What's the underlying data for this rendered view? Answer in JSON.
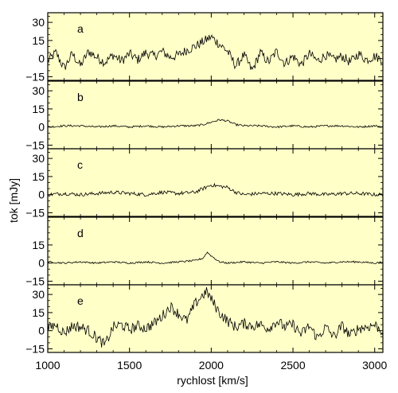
{
  "chart_data": {
    "type": "line",
    "xlabel": "rychlost [km/s]",
    "ylabel": "tok [mJy]",
    "xlim": [
      1000,
      3050
    ],
    "x_ticks": [
      1000,
      1500,
      2000,
      2500,
      3000
    ],
    "x_tick_labels": [
      "1000",
      "1500",
      "2000",
      "2500",
      "3000"
    ],
    "background_color": "#ffffc8",
    "line_color": "#000000",
    "grid": false,
    "panels": [
      {
        "label": "a",
        "ylim": [
          -18,
          38
        ],
        "y_ticks": [
          -15,
          0,
          15,
          30
        ],
        "y_tick_labels": [
          "−15",
          "0",
          "15",
          "30"
        ],
        "x": [
          1000,
          1050,
          1100,
          1150,
          1200,
          1250,
          1300,
          1350,
          1400,
          1450,
          1500,
          1550,
          1600,
          1650,
          1700,
          1750,
          1800,
          1850,
          1900,
          1950,
          2000,
          2050,
          2100,
          2150,
          2200,
          2250,
          2300,
          2350,
          2400,
          2450,
          2500,
          2550,
          2600,
          2650,
          2700,
          2750,
          2800,
          2850,
          2900,
          2950,
          3000,
          3050
        ],
        "values": [
          -2,
          5,
          -8,
          4,
          -6,
          6,
          1,
          -3,
          3,
          -2,
          4,
          -1,
          5,
          2,
          6,
          1,
          3,
          7,
          10,
          14,
          18,
          12,
          6,
          -6,
          3,
          -10,
          5,
          -3,
          6,
          -4,
          2,
          -5,
          4,
          -2,
          3,
          -1,
          2,
          -3,
          4,
          -1,
          2,
          -1
        ],
        "noise": 4
      },
      {
        "label": "b",
        "ylim": [
          -18,
          38
        ],
        "y_ticks": [
          -15,
          0,
          15,
          30
        ],
        "y_tick_labels": [
          "−15",
          "0",
          "15",
          "30"
        ],
        "x": [
          1000,
          1100,
          1200,
          1300,
          1400,
          1500,
          1600,
          1700,
          1800,
          1900,
          1950,
          2000,
          2050,
          2100,
          2150,
          2200,
          2300,
          2400,
          2500,
          2600,
          2700,
          2800,
          2900,
          3000,
          3050
        ],
        "values": [
          0,
          1,
          1,
          0,
          1,
          0,
          1,
          0,
          1,
          1,
          2,
          4,
          6,
          5,
          2,
          1,
          1,
          0,
          1,
          0,
          1,
          1,
          0,
          1,
          0
        ],
        "noise": 0.8
      },
      {
        "label": "c",
        "ylim": [
          -18,
          38
        ],
        "y_ticks": [
          -15,
          0,
          15,
          30
        ],
        "y_tick_labels": [
          "−15",
          "0",
          "15",
          "30"
        ],
        "x": [
          1000,
          1100,
          1200,
          1300,
          1400,
          1500,
          1600,
          1700,
          1800,
          1900,
          1950,
          2000,
          2050,
          2100,
          2150,
          2200,
          2300,
          2400,
          2500,
          2600,
          2700,
          2800,
          2900,
          3000,
          3050
        ],
        "values": [
          0,
          1,
          0,
          1,
          2,
          1,
          0,
          2,
          1,
          2,
          5,
          8,
          7,
          6,
          2,
          0,
          1,
          1,
          0,
          1,
          0,
          1,
          1,
          0,
          0
        ],
        "noise": 1.5
      },
      {
        "label": "d",
        "ylim": [
          -18,
          38
        ],
        "y_ticks": [
          -15,
          0,
          15
        ],
        "y_tick_labels": [
          "−15",
          "0",
          "15"
        ],
        "x": [
          1000,
          1100,
          1200,
          1300,
          1400,
          1500,
          1600,
          1700,
          1800,
          1900,
          1950,
          1975,
          2000,
          2050,
          2100,
          2200,
          2300,
          2400,
          2500,
          2600,
          2700,
          2800,
          2900,
          3000,
          3050
        ],
        "values": [
          1,
          0,
          1,
          0,
          1,
          0,
          1,
          0,
          1,
          2,
          4,
          9,
          6,
          1,
          0,
          1,
          0,
          1,
          0,
          1,
          0,
          1,
          1,
          0,
          1
        ],
        "noise": 0.7
      },
      {
        "label": "e",
        "ylim": [
          -18,
          38
        ],
        "y_ticks": [
          -15,
          0,
          15,
          30
        ],
        "y_tick_labels": [
          "−15",
          "0",
          "15",
          "30"
        ],
        "x": [
          1000,
          1050,
          1100,
          1150,
          1200,
          1250,
          1300,
          1350,
          1400,
          1450,
          1500,
          1550,
          1600,
          1650,
          1700,
          1750,
          1800,
          1850,
          1900,
          1950,
          1975,
          2000,
          2050,
          2100,
          2150,
          2200,
          2250,
          2300,
          2350,
          2400,
          2450,
          2500,
          2550,
          2600,
          2650,
          2700,
          2750,
          2800,
          2850,
          2900,
          2950,
          3000,
          3050
        ],
        "values": [
          2,
          5,
          -2,
          4,
          3,
          0,
          -6,
          -12,
          3,
          5,
          1,
          4,
          2,
          6,
          12,
          20,
          14,
          8,
          22,
          30,
          32,
          26,
          15,
          8,
          3,
          6,
          4,
          5,
          2,
          8,
          3,
          5,
          -3,
          4,
          -6,
          3,
          -5,
          4,
          -4,
          2,
          3,
          5,
          -1
        ],
        "noise": 4.5
      }
    ]
  }
}
